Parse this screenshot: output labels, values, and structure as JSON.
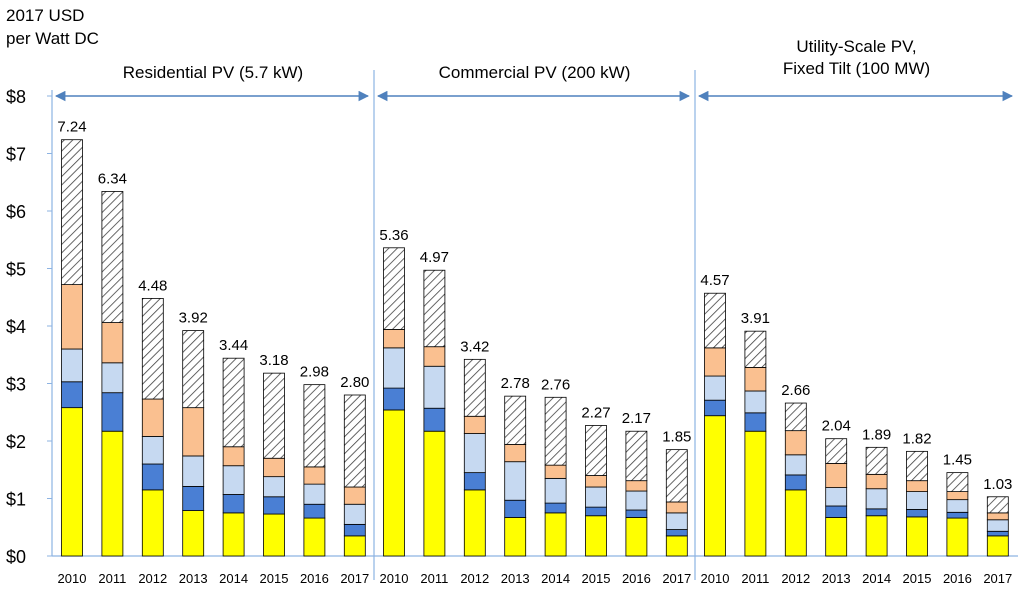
{
  "chart_data": {
    "type": "bar",
    "stacked": true,
    "ylabel": [
      "2017 USD",
      "per Watt DC"
    ],
    "ylim": [
      0,
      8
    ],
    "yticks": [
      "$0",
      "$1",
      "$2",
      "$3",
      "$4",
      "$5",
      "$6",
      "$7",
      "$8"
    ],
    "colors": {
      "yellow": "#ffff00",
      "blue": "#4a7fd4",
      "lightblue": "#c6d9f1",
      "orange": "#fac090",
      "hatch": "#ffffff",
      "axis": "#8db3e2",
      "arrow": "#4f81bd"
    },
    "groups": [
      {
        "title": "Residential PV (5.7 kW)",
        "categories": [
          "2010",
          "2011",
          "2012",
          "2013",
          "2014",
          "2015",
          "2016",
          "2017"
        ],
        "totals": [
          "7.24",
          "6.34",
          "4.48",
          "3.92",
          "3.44",
          "3.18",
          "2.98",
          "2.80"
        ],
        "stacks": [
          [
            2.58,
            0.45,
            0.57,
            1.12,
            2.52
          ],
          [
            2.17,
            0.67,
            0.52,
            0.7,
            2.28
          ],
          [
            1.15,
            0.45,
            0.48,
            0.65,
            1.75
          ],
          [
            0.79,
            0.42,
            0.53,
            0.84,
            1.34
          ],
          [
            0.75,
            0.32,
            0.5,
            0.33,
            1.54
          ],
          [
            0.73,
            0.3,
            0.35,
            0.32,
            1.48
          ],
          [
            0.66,
            0.24,
            0.35,
            0.3,
            1.43
          ],
          [
            0.35,
            0.2,
            0.35,
            0.3,
            1.6
          ]
        ]
      },
      {
        "title": "Commercial PV (200 kW)",
        "categories": [
          "2010",
          "2011",
          "2012",
          "2013",
          "2014",
          "2015",
          "2016",
          "2017"
        ],
        "totals": [
          "5.36",
          "4.97",
          "3.42",
          "2.78",
          "2.76",
          "2.27",
          "2.17",
          "1.85"
        ],
        "stacks": [
          [
            2.54,
            0.38,
            0.7,
            0.32,
            1.42
          ],
          [
            2.17,
            0.4,
            0.73,
            0.34,
            1.33
          ],
          [
            1.15,
            0.3,
            0.68,
            0.3,
            0.99
          ],
          [
            0.67,
            0.3,
            0.67,
            0.3,
            0.84
          ],
          [
            0.75,
            0.17,
            0.43,
            0.23,
            1.18
          ],
          [
            0.7,
            0.15,
            0.35,
            0.2,
            0.87
          ],
          [
            0.67,
            0.13,
            0.33,
            0.18,
            0.86
          ],
          [
            0.35,
            0.11,
            0.29,
            0.19,
            0.91
          ]
        ]
      },
      {
        "title": [
          "Utility-Scale PV,",
          "Fixed Tilt (100 MW)"
        ],
        "categories": [
          "2010",
          "2011",
          "2012",
          "2013",
          "2014",
          "2015",
          "2016",
          "2017"
        ],
        "totals": [
          "4.57",
          "3.91",
          "2.66",
          "2.04",
          "1.89",
          "1.82",
          "1.45",
          "1.03"
        ],
        "stacks": [
          [
            2.44,
            0.27,
            0.42,
            0.49,
            0.95
          ],
          [
            2.17,
            0.32,
            0.38,
            0.41,
            0.63
          ],
          [
            1.15,
            0.26,
            0.35,
            0.42,
            0.48
          ],
          [
            0.67,
            0.2,
            0.32,
            0.42,
            0.43
          ],
          [
            0.7,
            0.12,
            0.35,
            0.25,
            0.47
          ],
          [
            0.68,
            0.13,
            0.31,
            0.19,
            0.51
          ],
          [
            0.66,
            0.1,
            0.22,
            0.14,
            0.33
          ],
          [
            0.35,
            0.08,
            0.2,
            0.12,
            0.28
          ]
        ]
      }
    ]
  }
}
